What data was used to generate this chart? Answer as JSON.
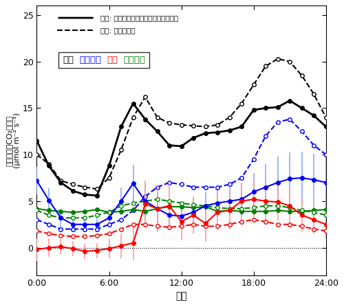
{
  "title_line1": "実線: 本研究の大気観測による評価結果",
  "title_line2": "破線: 統計データ",
  "xlabel": "時刻",
  "ylabel_line1": "都市からのCO₂排出量",
  "ylabel_line2": "(μmol m⁻² s⁻¹)",
  "xlim": [
    0,
    24
  ],
  "ylim": [
    -3,
    26
  ],
  "xticks": [
    0,
    6,
    12,
    18,
    24
  ],
  "xticklabels": [
    "0:00",
    "6:00",
    "12:00",
    "18:00",
    "24:00"
  ],
  "yticks": [
    0,
    5,
    10,
    15,
    20,
    25
  ],
  "legend_labels": [
    "総量",
    "都市ガス",
    "石油",
    "人間呼吸"
  ],
  "legend_colors": [
    "black",
    "blue",
    "red",
    "green"
  ],
  "hours": [
    0,
    1,
    2,
    3,
    4,
    5,
    6,
    7,
    8,
    9,
    10,
    11,
    12,
    13,
    14,
    15,
    16,
    17,
    18,
    19,
    20,
    21,
    22,
    23,
    24
  ],
  "total_solid": [
    11.5,
    8.8,
    7.0,
    6.1,
    5.7,
    5.6,
    8.8,
    13.0,
    15.5,
    13.8,
    12.5,
    11.0,
    10.9,
    11.8,
    12.3,
    12.4,
    12.6,
    13.0,
    14.8,
    15.0,
    15.1,
    15.8,
    15.0,
    14.2,
    13.0
  ],
  "total_dashed": [
    10.0,
    9.0,
    7.2,
    6.8,
    6.5,
    6.3,
    7.5,
    10.5,
    14.0,
    16.2,
    14.0,
    13.4,
    13.2,
    13.1,
    13.0,
    13.2,
    14.0,
    15.5,
    17.5,
    19.5,
    20.3,
    20.0,
    18.5,
    16.5,
    14.0
  ],
  "gas_solid": [
    7.2,
    5.1,
    3.2,
    2.5,
    2.5,
    2.5,
    3.2,
    5.0,
    6.9,
    5.0,
    4.2,
    3.5,
    3.4,
    3.8,
    4.5,
    4.8,
    5.0,
    5.2,
    6.0,
    6.5,
    7.0,
    7.4,
    7.5,
    7.3,
    7.0
  ],
  "gas_dashed": [
    3.0,
    2.5,
    2.0,
    2.0,
    2.0,
    2.0,
    2.5,
    3.0,
    4.0,
    5.5,
    6.5,
    7.0,
    6.8,
    6.5,
    6.5,
    6.5,
    6.8,
    7.5,
    9.5,
    12.0,
    13.5,
    13.8,
    12.5,
    11.0,
    10.0
  ],
  "gas_err": [
    1.5,
    1.3,
    1.0,
    0.8,
    0.8,
    0.8,
    1.0,
    1.5,
    2.0,
    2.0,
    1.8,
    1.5,
    1.5,
    1.5,
    1.5,
    1.5,
    1.5,
    1.8,
    2.0,
    2.5,
    2.8,
    2.8,
    2.8,
    2.8,
    2.8
  ],
  "oil_solid": [
    -0.2,
    0.0,
    0.1,
    -0.1,
    -0.4,
    -0.3,
    -0.1,
    0.2,
    0.5,
    4.7,
    4.2,
    4.5,
    2.8,
    3.5,
    2.6,
    3.8,
    4.0,
    5.0,
    5.2,
    5.0,
    4.9,
    4.5,
    3.5,
    3.0,
    2.5
  ],
  "oil_dashed": [
    1.8,
    1.5,
    1.3,
    1.2,
    1.2,
    1.3,
    1.5,
    2.0,
    2.5,
    2.5,
    2.3,
    2.2,
    2.3,
    2.5,
    2.3,
    2.3,
    2.5,
    2.8,
    3.0,
    2.8,
    2.5,
    2.5,
    2.3,
    2.0,
    1.8
  ],
  "oil_err": [
    1.2,
    1.0,
    0.8,
    0.8,
    0.8,
    0.8,
    1.0,
    1.3,
    1.8,
    2.5,
    2.5,
    2.5,
    2.0,
    2.0,
    2.0,
    2.0,
    2.0,
    2.0,
    2.0,
    2.0,
    2.0,
    2.0,
    1.8,
    1.5,
    1.5
  ],
  "human_solid": [
    4.2,
    4.0,
    3.9,
    3.8,
    3.9,
    4.1,
    3.8,
    3.9,
    4.1,
    3.9,
    4.2,
    4.4,
    4.4,
    4.3,
    4.4,
    3.9,
    4.0,
    3.9,
    3.9,
    3.9,
    4.0,
    3.9,
    3.9,
    4.0,
    4.1
  ],
  "human_dashed": [
    4.0,
    3.5,
    3.2,
    3.2,
    3.2,
    3.5,
    3.8,
    4.5,
    4.8,
    5.0,
    5.2,
    5.0,
    4.8,
    4.6,
    4.5,
    4.3,
    4.2,
    4.2,
    4.3,
    4.5,
    4.5,
    4.3,
    4.0,
    3.8,
    3.5
  ],
  "bg_color": "#ffffff",
  "plot_bg": "#ffffff",
  "marker_size_solid": 4,
  "marker_size_dashed": 4,
  "linewidth": 1.5
}
